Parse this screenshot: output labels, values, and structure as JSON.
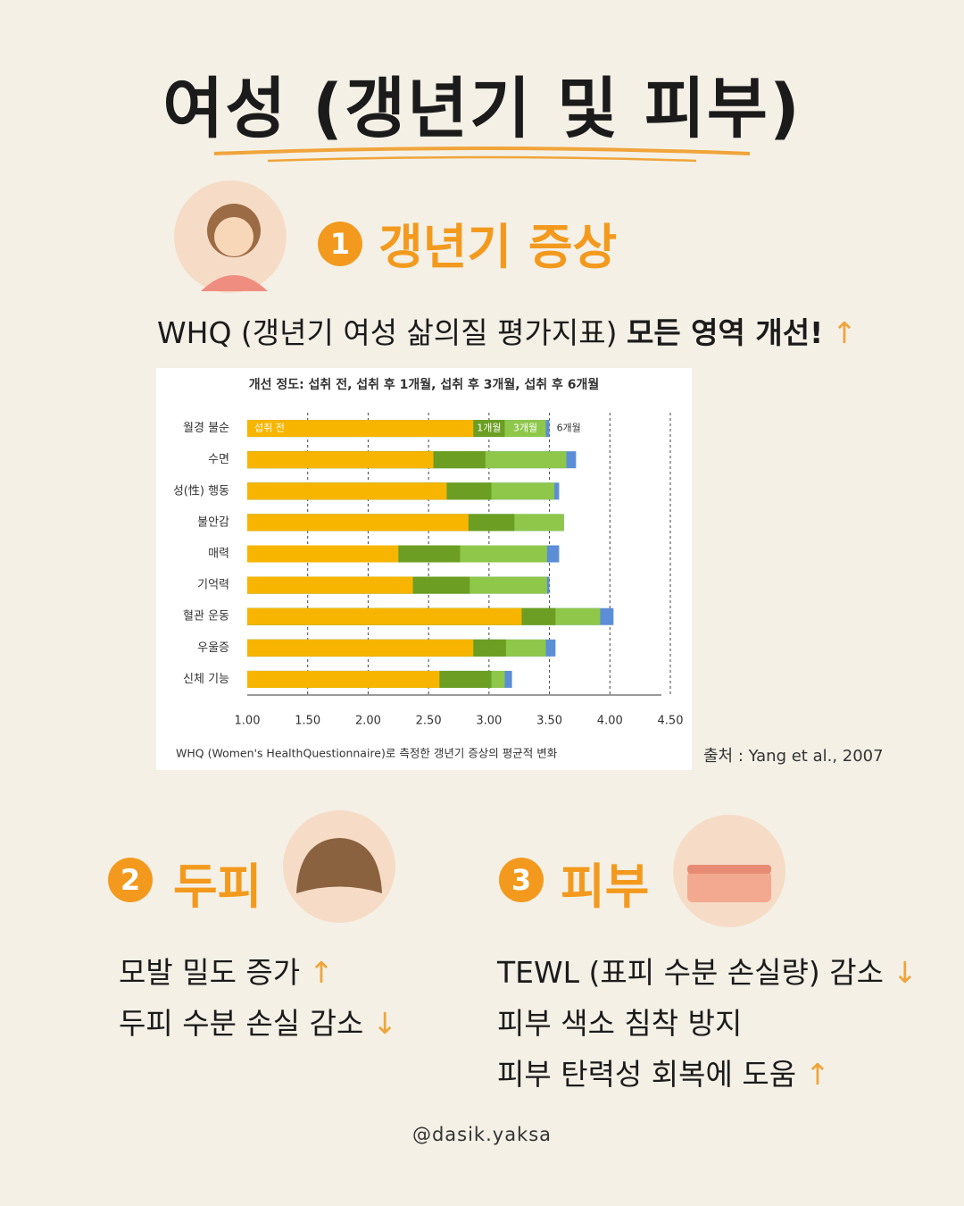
{
  "title": "여성 (갱년기 및 피부)",
  "sections": [
    {
      "number": "1",
      "heading": "갱년기 증상",
      "lines": [
        {
          "text": "WHQ (갱년기 여성 삶의질 평가지표)",
          "emphasis": "모든 영역 개선!",
          "arrow": "↑"
        }
      ]
    },
    {
      "number": "2",
      "heading": "두피",
      "lines": [
        {
          "text": "모발 밀도 증가",
          "arrow": "↑"
        },
        {
          "text": "두피 수분 손실 감소",
          "arrow": "↓"
        }
      ]
    },
    {
      "number": "3",
      "heading": "피부",
      "lines": [
        {
          "text": "TEWL (표피 수분 손실량) 감소",
          "arrow": "↓"
        },
        {
          "text": "피부 색소 침착 방지",
          "arrow": ""
        },
        {
          "text": "피부 탄력성 회복에 도움",
          "arrow": "↑"
        }
      ]
    }
  ],
  "chart_data": {
    "type": "bar",
    "orientation": "horizontal",
    "title": "개선 정도: 섭취 전, 섭취 후 1개월, 섭취 후 3개월, 섭취 후 6개월",
    "caption": "WHQ (Women's HealthQuestionnaire)로 측정한 갱년기 증상의 평균적 변화",
    "categories": [
      "월경 불순",
      "수면",
      "성(性) 행동",
      "불안감",
      "매력",
      "기억력",
      "혈관 운동",
      "우울증",
      "신체 기능"
    ],
    "series": [
      {
        "name": "섭취 전",
        "color": "#f7b500",
        "values": [
          2.87,
          2.54,
          2.65,
          2.83,
          2.25,
          2.37,
          3.27,
          2.87,
          2.59
        ]
      },
      {
        "name": "1개월",
        "color": "#6b9e22",
        "values": [
          3.13,
          2.97,
          3.02,
          3.21,
          2.76,
          2.84,
          3.55,
          3.14,
          3.02
        ]
      },
      {
        "name": "3개월",
        "color": "#8ec74a",
        "values": [
          3.47,
          3.64,
          3.54,
          3.62,
          3.48,
          3.48,
          3.92,
          3.47,
          3.13
        ]
      },
      {
        "name": "6개월",
        "color": "#5b8ed6",
        "values": [
          3.5,
          3.72,
          3.58,
          3.62,
          3.58,
          3.5,
          4.03,
          3.55,
          3.19
        ]
      }
    ],
    "xlim": [
      1,
      4.5
    ],
    "xticks": [
      {
        "value": 1,
        "label": "1.00"
      },
      {
        "value": 1.5,
        "label": "1.50"
      },
      {
        "value": 2,
        "label": "2.00"
      },
      {
        "value": 2.5,
        "label": "2.50"
      },
      {
        "value": 3,
        "label": "3.00"
      },
      {
        "value": 3.5,
        "label": "3.50"
      },
      {
        "value": 4,
        "label": "4.00"
      },
      {
        "value": 4.5,
        "label": "4.50"
      }
    ],
    "grid": true
  },
  "source": "출처 : Yang et al., 2007",
  "footer": "@dasik.yaksa"
}
